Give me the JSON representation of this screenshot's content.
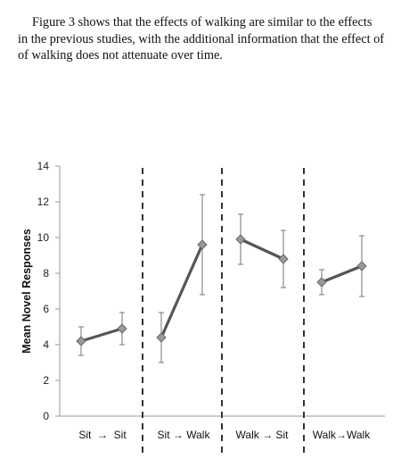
{
  "text": {
    "lines": [
      "Figure 3 shows that the effects of walking are similar to the effects",
      "in the previous studies, with the additional information that  the effect of",
      "of walking does not attenuate over time."
    ]
  },
  "chart_data": {
    "type": "line",
    "ylabel": "Mean Novel Responses",
    "ylim": [
      0,
      14
    ],
    "yticks": [
      0,
      2,
      4,
      6,
      8,
      10,
      12,
      14
    ],
    "colors": {
      "line": "#555555",
      "marker": "#9a9a9a",
      "error_bar": "#8a8a8a",
      "divider": "#333333",
      "axis": "#999999"
    },
    "groups": [
      {
        "label": "Sit  →  Sit",
        "values": [
          4.2,
          4.9
        ],
        "error_low": [
          3.4,
          4.0
        ],
        "error_high": [
          5.0,
          5.8
        ]
      },
      {
        "label": "Sit → Walk",
        "values": [
          4.4,
          9.6
        ],
        "error_low": [
          3.0,
          6.8
        ],
        "error_high": [
          5.8,
          12.4
        ]
      },
      {
        "label": "Walk → Sit",
        "values": [
          9.9,
          8.8
        ],
        "error_low": [
          8.5,
          7.2
        ],
        "error_high": [
          11.3,
          10.4
        ]
      },
      {
        "label": "Walk→Walk",
        "values": [
          7.5,
          8.4
        ],
        "error_low": [
          6.8,
          6.7
        ],
        "error_high": [
          8.2,
          10.1
        ]
      }
    ]
  }
}
